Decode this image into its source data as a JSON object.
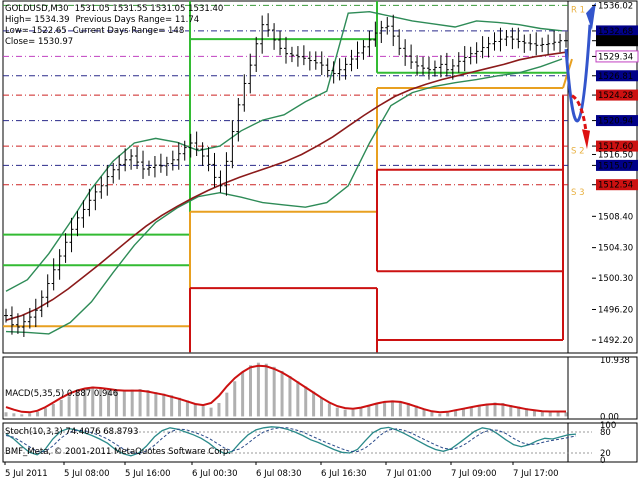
{
  "header": {
    "symbol": "GOLDUSD,M30",
    "ohlc": "1531.05 1531.55 1531.05 1531.40",
    "high": "High= 1534.39",
    "prev_range": "Previous Days Range= 11.74",
    "low": "Low= 1522.65",
    "curr_range": "Current Days Range= 148",
    "close": "Close= 1530.97"
  },
  "copyright": "BMF_Meta, © 2001-2011 MetaQuotes Software Corp.",
  "chart_data": {
    "type": "line",
    "main": {
      "ylim": [
        1490.5,
        1536.6
      ],
      "y_ticks": [
        "1536.02",
        "1532.68",
        "1531.40",
        "1529.34",
        "1526.81",
        "1524.28",
        "1520.94",
        "1517.60",
        "1516.50",
        "1515.07",
        "1512.54",
        "1508.40",
        "1504.30",
        "1500.30",
        "1496.20",
        "1492.20"
      ],
      "price_close": [
        1495.4,
        1494.2,
        1493.9,
        1494.6,
        1495.2,
        1496.1,
        1497.8,
        1499.6,
        1501.4,
        1503.2,
        1505.0,
        1506.7,
        1508.2,
        1509.3,
        1510.5,
        1511.6,
        1512.4,
        1513.6,
        1514.5,
        1515.2,
        1515.8,
        1516.3,
        1515.5,
        1514.6,
        1514.8,
        1515.1,
        1515.0,
        1515.3,
        1515.8,
        1516.6,
        1517.4,
        1518.0,
        1517.2,
        1516.3,
        1515.2,
        1513.5,
        1512.4,
        1515.6,
        1519.5,
        1523.0,
        1525.8,
        1528.2,
        1531.0,
        1533.5,
        1532.8,
        1531.5,
        1530.4,
        1529.7,
        1529.5,
        1529.3,
        1529.1,
        1528.8,
        1528.5,
        1528.2,
        1527.5,
        1527.1,
        1527.6,
        1528.3,
        1529.0,
        1529.8,
        1530.6,
        1531.5,
        1532.4,
        1533.1,
        1533.3,
        1532.0,
        1530.4,
        1529.4,
        1528.6,
        1528.1,
        1527.8,
        1527.6,
        1527.9,
        1528.3,
        1527.6,
        1528.1,
        1528.7,
        1529.2,
        1529.7,
        1530.0,
        1530.5,
        1531.0,
        1531.3,
        1531.6,
        1531.9,
        1531.6,
        1531.3,
        1531.1,
        1531.0,
        1530.8,
        1530.9,
        1531.0,
        1531.2,
        1531.4,
        1531.4
      ],
      "moving_average": [
        1494.8,
        1495.4,
        1496.3,
        1497.5,
        1498.9,
        1500.5,
        1502.1,
        1503.8,
        1505.5,
        1507.1,
        1508.5,
        1509.7,
        1510.8,
        1511.8,
        1512.7,
        1513.5,
        1514.2,
        1514.9,
        1515.6,
        1516.5,
        1517.6,
        1518.8,
        1520.2,
        1521.6,
        1522.9,
        1524.1,
        1525.0,
        1525.7,
        1526.3,
        1526.8,
        1527.3,
        1527.8,
        1528.3,
        1528.9,
        1529.3,
        1529.6,
        1529.9
      ],
      "bollinger_upper": [
        1498.6,
        1500.1,
        1503.5,
        1507.6,
        1512.0,
        1515.6,
        1518.0,
        1518.6,
        1518.1,
        1517.0,
        1517.6,
        1519.6,
        1521.0,
        1521.7,
        1523.4,
        1524.8,
        1535.0,
        1535.2,
        1534.6,
        1534.0,
        1533.6,
        1533.2,
        1534.0,
        1533.8,
        1533.5,
        1533.0,
        1532.7
      ],
      "bollinger_lower": [
        1493.3,
        1493.2,
        1493.0,
        1494.5,
        1497.2,
        1501.0,
        1504.6,
        1507.6,
        1509.5,
        1511.0,
        1511.5,
        1510.9,
        1510.2,
        1509.9,
        1509.6,
        1510.2,
        1512.4,
        1518.0,
        1522.9,
        1524.6,
        1525.4,
        1525.9,
        1526.3,
        1526.8,
        1527.2,
        1528.0,
        1529.0
      ],
      "pivot_R1": "R 1",
      "pivot_S2": "S 2",
      "pivot_S3": "S 3"
    },
    "macd": {
      "label": "MACD(5,35,5) 0.887 0.946",
      "ylim": [
        -0.5,
        11.5
      ],
      "y_ticks": [
        "10.938",
        "0.00"
      ],
      "histogram": [
        0.8,
        0.6,
        0.4,
        0.6,
        0.9,
        1.6,
        2.4,
        3.2,
        3.9,
        4.7,
        5.4,
        5.8,
        5.6,
        5.3,
        4.9,
        4.9,
        5.2,
        5.3,
        5.1,
        4.7,
        4.4,
        4.1,
        3.6,
        3.1,
        2.5,
        2.0,
        1.7,
        2.6,
        4.6,
        6.8,
        8.6,
        9.9,
        10.4,
        10.2,
        9.6,
        8.8,
        7.8,
        6.8,
        5.8,
        4.8,
        3.6,
        2.5,
        1.7,
        1.3,
        1.3,
        1.6,
        2.1,
        2.6,
        2.9,
        3.1,
        2.9,
        2.6,
        2.1,
        1.5,
        0.9,
        0.5,
        0.7,
        1.1,
        1.5,
        1.9,
        2.2,
        2.5,
        2.7,
        2.6,
        2.2,
        1.9,
        1.6,
        1.3,
        1.0,
        0.9,
        0.9,
        0.8
      ],
      "signal": [
        1.8,
        1.3,
        0.9,
        0.8,
        1.1,
        1.8,
        2.7,
        3.6,
        4.4,
        5.0,
        5.4,
        5.6,
        5.5,
        5.3,
        5.1,
        5.0,
        5.0,
        5.0,
        4.8,
        4.5,
        4.2,
        3.8,
        3.4,
        2.9,
        2.4,
        2.2,
        2.6,
        4.0,
        5.8,
        7.4,
        8.6,
        9.5,
        9.8,
        9.7,
        9.2,
        8.5,
        7.6,
        6.6,
        5.6,
        4.6,
        3.6,
        2.7,
        2.0,
        1.6,
        1.5,
        1.7,
        2.1,
        2.5,
        2.8,
        2.9,
        2.8,
        2.4,
        1.9,
        1.4,
        1.0,
        0.8,
        0.9,
        1.2,
        1.5,
        1.8,
        2.1,
        2.3,
        2.4,
        2.3,
        2.0,
        1.7,
        1.4,
        1.2,
        1.0,
        0.95,
        0.95,
        0.95
      ]
    },
    "stoch": {
      "label": "Stoch(10,3,3) 74.4076 68.8793",
      "ylim": [
        0,
        100
      ],
      "y_ticks": [
        "100",
        "80",
        "20",
        "0"
      ],
      "main": [
        75,
        60,
        40,
        22,
        15,
        30,
        60,
        82,
        90,
        86,
        78,
        70,
        60,
        48,
        30,
        18,
        12,
        20,
        40,
        66,
        84,
        92,
        88,
        80,
        72,
        62,
        48,
        30,
        18,
        25,
        50,
        72,
        86,
        92,
        95,
        93,
        88,
        80,
        70,
        58,
        50,
        40,
        30,
        22,
        20,
        30,
        55,
        78,
        90,
        93,
        86,
        76,
        64,
        52,
        40,
        30,
        25,
        32,
        48,
        65,
        82,
        92,
        88,
        74,
        58,
        44,
        38,
        44,
        55,
        62,
        60,
        66,
        72,
        74
      ],
      "signal": [
        70,
        65,
        52,
        38,
        24,
        24,
        40,
        62,
        78,
        85,
        84,
        78,
        70,
        60,
        46,
        32,
        22,
        18,
        26,
        42,
        62,
        80,
        88,
        87,
        80,
        72,
        62,
        48,
        34,
        26,
        32,
        48,
        66,
        80,
        88,
        92,
        92,
        87,
        80,
        70,
        60,
        50,
        41,
        32,
        25,
        24,
        34,
        52,
        72,
        86,
        89,
        85,
        76,
        65,
        54,
        43,
        34,
        30,
        36,
        48,
        64,
        78,
        86,
        85,
        76,
        62,
        50,
        44,
        46,
        52,
        56,
        60,
        64,
        69
      ]
    },
    "x_ticks": [
      "5 Jul 2011",
      "5 Jul 08:00",
      "5 Jul 16:00",
      "6 Jul 00:30",
      "6 Jul 08:30",
      "6 Jul 16:30",
      "7 Jul 01:00",
      "7 Jul 09:00",
      "7 Jul 17:00"
    ]
  }
}
